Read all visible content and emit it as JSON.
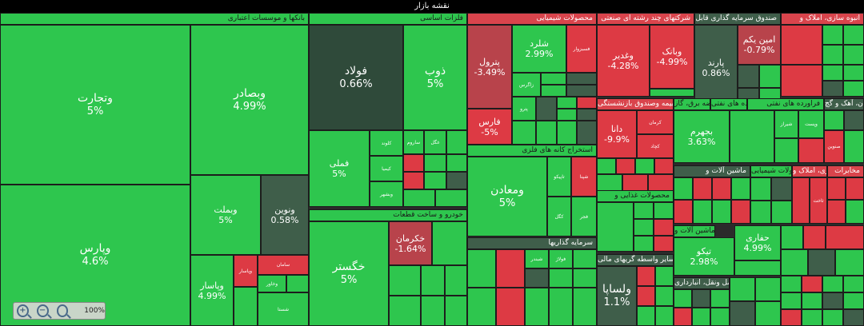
{
  "title": "نقشه بازار",
  "sectors": {
    "banks": "بانکها و موسسات اعتباری",
    "basic_metals": "فلزات اساسی",
    "chemicals": "محصولات شیمیایی",
    "multi_industry": "شرکتهای چند رشته ای صنعتی",
    "etf": "صندوق سرمایه گذاری قابل",
    "real_estate": "انبوه سازی، املاک و",
    "auto": "خودرو و ساخت قطعات",
    "metal_ores": "استخراج کانه های فلزی",
    "insurance": "بیمه وصندوق بازنشستگی",
    "utilities": "عرضه برق، گاز",
    "oil": "فراورده های نفتی",
    "cement": "سیمان، آهک و گچ",
    "investment": "سرمایه گذاریها",
    "food": "محصولات غذایی و",
    "other_fin": "سایر واسطه گریهای مالی",
    "telecom": "مخابرات",
    "machinery": "ماشین آلات و",
    "transport": "حمل ونقل، انبارداری"
  },
  "cells": {
    "vtejarat": {
      "name": "وتجارت",
      "pct": "5%"
    },
    "vbsadr": {
      "name": "وبصادر",
      "pct": "4.99%"
    },
    "vbmellat": {
      "name": "وبملت",
      "pct": "5%"
    },
    "vnovin": {
      "name": "ونوین",
      "pct": "0.58%"
    },
    "vpars": {
      "name": "وپارس",
      "pct": "4.6%"
    },
    "vpasar": {
      "name": "وپاسار",
      "pct": "4.99%"
    },
    "foolad": {
      "name": "فولاد",
      "pct": "0.66%"
    },
    "zob": {
      "name": "ذوب",
      "pct": "5%"
    },
    "fameli": {
      "name": "فملی",
      "pct": "5%"
    },
    "khodro": {
      "name": "خکرمان",
      "pct": "-1.64%"
    },
    "khgostar": {
      "name": "خگستر",
      "pct": "5%"
    },
    "shelard": {
      "name": "شلرد",
      "pct": "2.99%"
    },
    "petrol": {
      "name": "پترول",
      "pct": "-3.49%"
    },
    "fars": {
      "name": "فارس",
      "pct": "-5%"
    },
    "vghadir": {
      "name": "وغدیر",
      "pct": "-4.28%"
    },
    "vbank": {
      "name": "وبانک",
      "pct": "-4.99%"
    },
    "parand": {
      "name": "پارند",
      "pct": "0.86%"
    },
    "aminyekom": {
      "name": "امین یکم",
      "pct": "-0.79%"
    },
    "vmaaden": {
      "name": "ومعادن",
      "pct": "5%"
    },
    "dana": {
      "name": "دانا",
      "pct": "-9.9%"
    },
    "bjahrom": {
      "name": "بجهرم",
      "pct": "3.63%"
    },
    "tiko": {
      "name": "تیکو",
      "pct": "2.98%"
    },
    "vsapa": {
      "name": "ولساپا",
      "pct": "1.1%"
    },
    "hafari": {
      "name": "حفاری",
      "pct": "4.99%"
    }
  },
  "small_labels": [
    "کگل",
    "فجر",
    "وپاسار",
    "سامان",
    "وخاور",
    "شستا",
    "کچاد",
    "تاپیکو",
    "شپنا",
    "شبندر",
    "فولاژ",
    "کرمان",
    "شیراز",
    "وپست",
    "صنوین",
    "ثاخت",
    "کلوند",
    "کیمیا",
    "وبشهر",
    "ساروم",
    "غگل",
    "فسبزوار",
    "زاگرس",
    "پترو",
    "ومعادن",
    "فملی",
    "شپدیس",
    "کنور",
    "بفجر",
    "ثنوسا",
    "تپسی",
    "ثشرق",
    "فرآور",
    "ستران",
    "وپترو",
    "شفن"
  ],
  "zoom": "100%",
  "colors": {
    "green": "#2ec64e",
    "red": "#dd3a44",
    "dark": "#3f5e4a"
  }
}
